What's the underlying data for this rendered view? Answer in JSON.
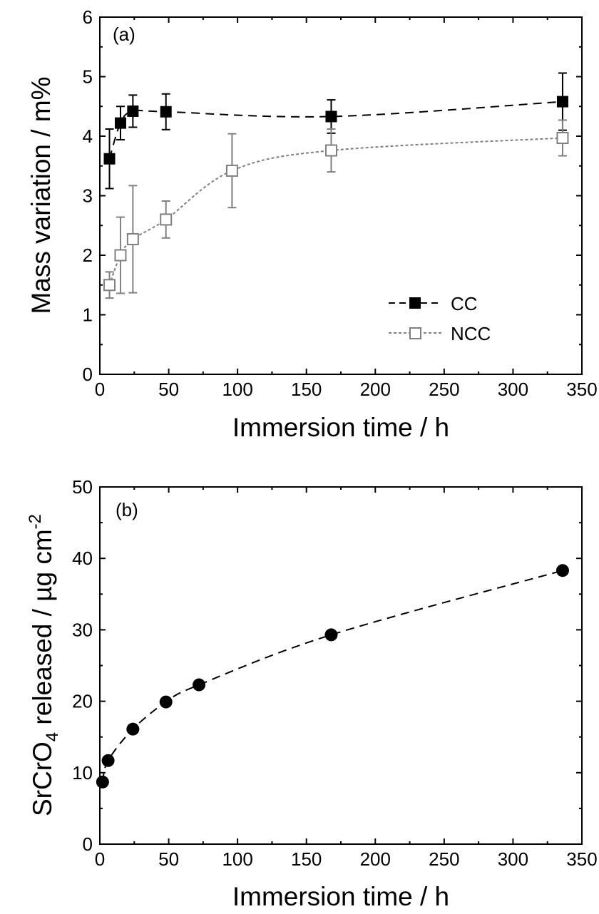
{
  "chart_data": [
    {
      "type": "scatter",
      "panel_label": "(a)",
      "xlabel": "Immersion time / h",
      "ylabel": "Mass variation / m%",
      "xlim": [
        0,
        350
      ],
      "ylim": [
        0,
        6
      ],
      "xticks": [
        0,
        50,
        100,
        150,
        200,
        250,
        300,
        350
      ],
      "yticks": [
        0,
        1,
        2,
        3,
        4,
        5,
        6
      ],
      "grid": false,
      "legend_position": "bottom-right",
      "series": [
        {
          "name": "CC",
          "marker": "filled-square",
          "color": "#000000",
          "line_style": "dashed",
          "x": [
            7,
            15,
            24,
            48,
            168,
            336
          ],
          "y": [
            3.62,
            4.22,
            4.42,
            4.41,
            4.33,
            4.58
          ],
          "error": [
            0.5,
            0.28,
            0.27,
            0.3,
            0.28,
            0.48
          ]
        },
        {
          "name": "NCC",
          "marker": "open-square",
          "color": "#808080",
          "line_style": "dotted",
          "x": [
            7,
            15,
            24,
            48,
            96,
            168,
            336
          ],
          "y": [
            1.5,
            2.0,
            2.27,
            2.6,
            3.42,
            3.76,
            3.97
          ],
          "error": [
            0.22,
            0.64,
            0.9,
            0.31,
            0.62,
            0.36,
            0.3
          ]
        }
      ]
    },
    {
      "type": "scatter",
      "panel_label": "(b)",
      "xlabel": "Immersion time / h",
      "ylabel": "SrCrO",
      "ylabel_subscript": "4",
      "ylabel_rest": " released / µg cm",
      "ylabel_superscript": "-2",
      "xlim": [
        0,
        350
      ],
      "ylim": [
        0,
        50
      ],
      "xticks": [
        0,
        50,
        100,
        150,
        200,
        250,
        300,
        350
      ],
      "yticks": [
        0,
        10,
        20,
        30,
        40,
        50
      ],
      "grid": false,
      "series": [
        {
          "marker": "filled-circle",
          "color": "#000000",
          "line_style": "dashed",
          "x": [
            2,
            6,
            24,
            48,
            72,
            168,
            336
          ],
          "y": [
            8.7,
            11.7,
            16.1,
            19.9,
            22.3,
            29.3,
            38.3
          ]
        }
      ]
    }
  ]
}
